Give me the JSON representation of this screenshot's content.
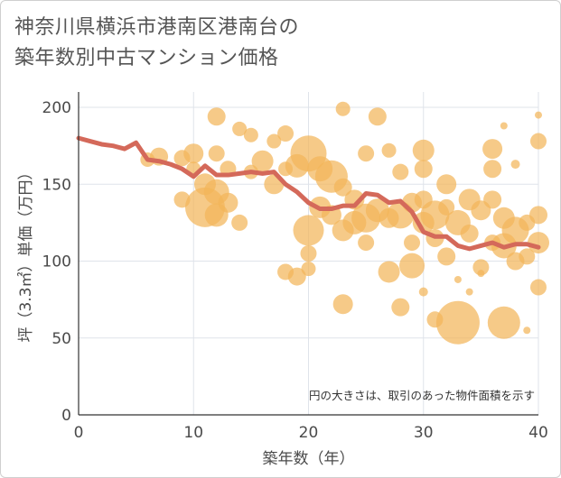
{
  "title_line1": "神奈川県横浜市港南区港南台の",
  "title_line2": "築年数別中古マンション価格",
  "chart_data": {
    "type": "scatter",
    "xlabel": "築年数（年）",
    "ylabel": "坪（3.3㎡）単価（万円）",
    "note": "円の大きさは、取引のあった物件面積を示す",
    "xlim": [
      0,
      40
    ],
    "ylim": [
      0,
      210
    ],
    "xticks": [
      0,
      10,
      20,
      30,
      40
    ],
    "yticks": [
      0,
      50,
      100,
      150,
      200
    ],
    "grid": true,
    "colors": {
      "bubble": "#f2b55a",
      "line": "#d4695a"
    },
    "trend_line": {
      "x": [
        0,
        1,
        2,
        3,
        4,
        5,
        6,
        7,
        8,
        9,
        10,
        11,
        12,
        13,
        14,
        15,
        16,
        17,
        18,
        19,
        20,
        21,
        22,
        23,
        24,
        25,
        26,
        27,
        28,
        29,
        30,
        31,
        32,
        33,
        34,
        35,
        36,
        37,
        38,
        39,
        40
      ],
      "y": [
        180,
        178,
        176,
        175,
        173,
        177,
        166,
        165,
        163,
        160,
        155,
        162,
        156,
        156,
        157,
        158,
        157,
        158,
        150,
        145,
        138,
        134,
        134,
        136,
        136,
        144,
        143,
        138,
        139,
        132,
        119,
        116,
        116,
        110,
        108,
        110,
        112,
        109,
        111,
        111,
        109
      ]
    },
    "bubbles": [
      {
        "x": 6,
        "y": 166,
        "r": 8
      },
      {
        "x": 7,
        "y": 168,
        "r": 10
      },
      {
        "x": 9,
        "y": 167,
        "r": 9
      },
      {
        "x": 10,
        "y": 170,
        "r": 11
      },
      {
        "x": 10,
        "y": 160,
        "r": 8
      },
      {
        "x": 9,
        "y": 140,
        "r": 9
      },
      {
        "x": 11,
        "y": 135,
        "r": 22
      },
      {
        "x": 11,
        "y": 150,
        "r": 12
      },
      {
        "x": 12,
        "y": 194,
        "r": 10
      },
      {
        "x": 12,
        "y": 170,
        "r": 9
      },
      {
        "x": 12,
        "y": 130,
        "r": 13
      },
      {
        "x": 12,
        "y": 145,
        "r": 14
      },
      {
        "x": 13,
        "y": 160,
        "r": 9
      },
      {
        "x": 13,
        "y": 138,
        "r": 11
      },
      {
        "x": 14,
        "y": 186,
        "r": 8
      },
      {
        "x": 14,
        "y": 125,
        "r": 9
      },
      {
        "x": 15,
        "y": 182,
        "r": 8
      },
      {
        "x": 15,
        "y": 158,
        "r": 8
      },
      {
        "x": 16,
        "y": 165,
        "r": 12
      },
      {
        "x": 17,
        "y": 178,
        "r": 8
      },
      {
        "x": 17,
        "y": 150,
        "r": 11
      },
      {
        "x": 18,
        "y": 183,
        "r": 9
      },
      {
        "x": 18,
        "y": 160,
        "r": 8
      },
      {
        "x": 18,
        "y": 93,
        "r": 9
      },
      {
        "x": 19,
        "y": 162,
        "r": 13
      },
      {
        "x": 19,
        "y": 90,
        "r": 10
      },
      {
        "x": 20,
        "y": 170,
        "r": 20
      },
      {
        "x": 20,
        "y": 120,
        "r": 17
      },
      {
        "x": 20,
        "y": 105,
        "r": 9
      },
      {
        "x": 20,
        "y": 95,
        "r": 8
      },
      {
        "x": 21,
        "y": 160,
        "r": 14
      },
      {
        "x": 21,
        "y": 135,
        "r": 12
      },
      {
        "x": 22,
        "y": 155,
        "r": 18
      },
      {
        "x": 22,
        "y": 130,
        "r": 11
      },
      {
        "x": 23,
        "y": 199,
        "r": 8
      },
      {
        "x": 23,
        "y": 148,
        "r": 10
      },
      {
        "x": 23,
        "y": 120,
        "r": 12
      },
      {
        "x": 23,
        "y": 72,
        "r": 11
      },
      {
        "x": 24,
        "y": 140,
        "r": 11
      },
      {
        "x": 24,
        "y": 125,
        "r": 13
      },
      {
        "x": 25,
        "y": 170,
        "r": 9
      },
      {
        "x": 25,
        "y": 128,
        "r": 16
      },
      {
        "x": 25,
        "y": 112,
        "r": 9
      },
      {
        "x": 26,
        "y": 194,
        "r": 10
      },
      {
        "x": 26,
        "y": 133,
        "r": 13
      },
      {
        "x": 27,
        "y": 172,
        "r": 8
      },
      {
        "x": 27,
        "y": 128,
        "r": 11
      },
      {
        "x": 27,
        "y": 93,
        "r": 12
      },
      {
        "x": 28,
        "y": 158,
        "r": 9
      },
      {
        "x": 28,
        "y": 130,
        "r": 15
      },
      {
        "x": 28,
        "y": 70,
        "r": 10
      },
      {
        "x": 29,
        "y": 138,
        "r": 11
      },
      {
        "x": 29,
        "y": 112,
        "r": 9
      },
      {
        "x": 29,
        "y": 97,
        "r": 14
      },
      {
        "x": 30,
        "y": 172,
        "r": 12
      },
      {
        "x": 30,
        "y": 160,
        "r": 10
      },
      {
        "x": 30,
        "y": 140,
        "r": 10
      },
      {
        "x": 30,
        "y": 125,
        "r": 12
      },
      {
        "x": 31,
        "y": 130,
        "r": 16
      },
      {
        "x": 31,
        "y": 115,
        "r": 10
      },
      {
        "x": 31,
        "y": 62,
        "r": 9
      },
      {
        "x": 32,
        "y": 150,
        "r": 11
      },
      {
        "x": 32,
        "y": 135,
        "r": 9
      },
      {
        "x": 32,
        "y": 103,
        "r": 10
      },
      {
        "x": 33,
        "y": 60,
        "r": 24
      },
      {
        "x": 33,
        "y": 125,
        "r": 14
      },
      {
        "x": 34,
        "y": 140,
        "r": 12
      },
      {
        "x": 34,
        "y": 118,
        "r": 10
      },
      {
        "x": 35,
        "y": 133,
        "r": 11
      },
      {
        "x": 35,
        "y": 96,
        "r": 9
      },
      {
        "x": 36,
        "y": 173,
        "r": 11
      },
      {
        "x": 36,
        "y": 160,
        "r": 10
      },
      {
        "x": 36,
        "y": 140,
        "r": 10
      },
      {
        "x": 36,
        "y": 112,
        "r": 9
      },
      {
        "x": 37,
        "y": 128,
        "r": 12
      },
      {
        "x": 37,
        "y": 110,
        "r": 14
      },
      {
        "x": 37,
        "y": 60,
        "r": 18
      },
      {
        "x": 38,
        "y": 120,
        "r": 15
      },
      {
        "x": 38,
        "y": 100,
        "r": 10
      },
      {
        "x": 39,
        "y": 125,
        "r": 9
      },
      {
        "x": 39,
        "y": 103,
        "r": 9
      },
      {
        "x": 40,
        "y": 178,
        "r": 9
      },
      {
        "x": 40,
        "y": 130,
        "r": 10
      },
      {
        "x": 40,
        "y": 112,
        "r": 12
      },
      {
        "x": 40,
        "y": 83,
        "r": 9
      },
      {
        "x": 40,
        "y": 195,
        "r": 4
      },
      {
        "x": 38,
        "y": 163,
        "r": 5
      },
      {
        "x": 35,
        "y": 92,
        "r": 4
      },
      {
        "x": 34,
        "y": 80,
        "r": 4
      },
      {
        "x": 30,
        "y": 80,
        "r": 5
      },
      {
        "x": 37,
        "y": 188,
        "r": 4
      },
      {
        "x": 33,
        "y": 88,
        "r": 4
      },
      {
        "x": 39,
        "y": 55,
        "r": 4
      }
    ]
  }
}
